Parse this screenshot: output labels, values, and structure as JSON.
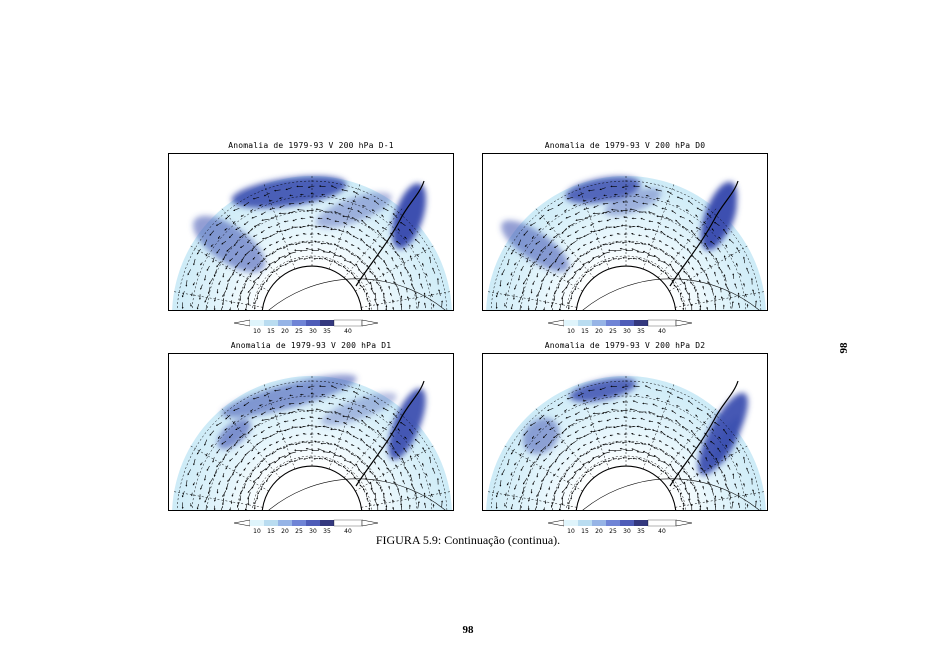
{
  "panels": [
    {
      "title": "Anomalia de 1979-93 V 200 hPa D-1",
      "colorbar_labels": [
        "10",
        "15",
        "20",
        "25",
        "30",
        "35",
        "40"
      ]
    },
    {
      "title": "Anomalia de 1979-93 V 200 hPa D0",
      "colorbar_labels": [
        "10",
        "15",
        "20",
        "25",
        "30",
        "35",
        "40"
      ]
    },
    {
      "title": "Anomalia de 1979-93 V 200 hPa D1",
      "colorbar_labels": [
        "10",
        "15",
        "20",
        "25",
        "30",
        "35",
        "40"
      ]
    },
    {
      "title": "Anomalia de 1979-93 V 200 hPa D2",
      "colorbar_labels": [
        "10",
        "15",
        "20",
        "25",
        "30",
        "35",
        "40"
      ]
    }
  ],
  "colorbar_colors": [
    "#dff4fb",
    "#b9dcf0",
    "#96b4e6",
    "#6f84d6",
    "#4e5cb8",
    "#34387e"
  ],
  "caption": "FIGURA 5.9: Continuação (continua).",
  "page_number": "98",
  "page_number_side": "98"
}
